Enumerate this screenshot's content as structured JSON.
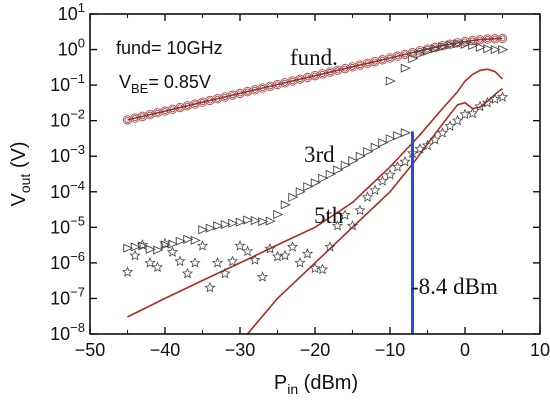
{
  "chart_data": {
    "type": "scatter",
    "xlabel": {
      "main": "P",
      "sub": "in",
      "rest": " (dBm)"
    },
    "ylabel": {
      "main": "V",
      "sub": "out",
      "rest": " (V)"
    },
    "xlim": [
      -50,
      10
    ],
    "ylim_log10": [
      -8,
      1
    ],
    "x_ticks": [
      -50,
      -40,
      -30,
      -20,
      -10,
      0,
      10
    ],
    "y_tick_exponents": [
      -8,
      -7,
      -6,
      -5,
      -4,
      -3,
      -2,
      -1,
      0,
      1
    ],
    "y_tick_base": "10",
    "scale_y": "log",
    "grid": false,
    "annotations": {
      "fund_label": "fund= 10GHz",
      "vbe_label": {
        "main": "V",
        "sub": "BE",
        "rest": "= 0.85V"
      },
      "fund_curve": "fund.",
      "third_curve": "3rd",
      "fifth_curve": "5th",
      "power_marker": "-8.4 dBm"
    },
    "marker_x": -7,
    "colors": {
      "model": "#b22a1e",
      "circle": "#d14a4a",
      "triangle": "#444444",
      "star": "#444444",
      "marker": "#2b4bd6"
    },
    "series": [
      {
        "marker": "circle",
        "role": "fund-measured",
        "x": [
          -45,
          -44,
          -43,
          -42,
          -41,
          -40,
          -39,
          -38,
          -37,
          -36,
          -35,
          -34,
          -33,
          -32,
          -31,
          -30,
          -29,
          -28,
          -27,
          -26,
          -25,
          -24,
          -23,
          -22,
          -21,
          -20,
          -19,
          -18,
          -17,
          -16,
          -15,
          -14,
          -13,
          -12,
          -11,
          -10,
          -9,
          -8,
          -7,
          -6,
          -5,
          -4,
          -3,
          -2,
          -1,
          0,
          1,
          2,
          3,
          4,
          5
        ],
        "y": [
          0.0105,
          0.0118,
          0.0132,
          0.0148,
          0.0166,
          0.0186,
          0.0209,
          0.0234,
          0.0262,
          0.0294,
          0.033,
          0.037,
          0.0415,
          0.0465,
          0.0522,
          0.0585,
          0.0656,
          0.0736,
          0.0825,
          0.0926,
          0.1039,
          0.1165,
          0.1307,
          0.1466,
          0.1645,
          0.1845,
          0.207,
          0.232,
          0.26,
          0.292,
          0.327,
          0.367,
          0.411,
          0.461,
          0.517,
          0.58,
          0.65,
          0.73,
          0.82,
          0.92,
          1.03,
          1.15,
          1.28,
          1.42,
          1.55,
          1.68,
          1.8,
          1.9,
          1.97,
          2.02,
          2.05
        ]
      },
      {
        "marker": "triangle",
        "role": "fund-sim",
        "x": [
          -10,
          -8,
          -7,
          -6,
          -5,
          -4,
          -3,
          -2,
          -1,
          0,
          1,
          2,
          3,
          4,
          5
        ],
        "y": [
          0.13,
          0.3,
          0.55,
          0.75,
          0.9,
          1.05,
          1.2,
          1.35,
          1.45,
          1.4,
          1.3,
          1.15,
          1.05,
          1.0,
          1.0
        ]
      },
      {
        "marker": "triangle",
        "role": "3rd-measured",
        "x": [
          -45,
          -44,
          -43,
          -42,
          -41,
          -40,
          -39,
          -38,
          -37,
          -36,
          -35,
          -34,
          -33,
          -32,
          -31,
          -30,
          -29,
          -28,
          -27,
          -26,
          -25,
          -24,
          -23,
          -22,
          -21,
          -20,
          -19,
          -18,
          -17,
          -16,
          -15,
          -14,
          -13,
          -12,
          -11,
          -10,
          -9,
          -8
        ],
        "y": [
          2.6e-06,
          2.8e-06,
          3e-06,
          2.4e-06,
          2.3e-06,
          3.2e-06,
          3.4e-06,
          4.1e-06,
          4.6e-06,
          4.3e-06,
          8.5e-06,
          9.5e-06,
          1.1e-05,
          1.2e-05,
          1.3e-05,
          1.4e-05,
          1.6e-05,
          1.55e-05,
          1.45e-05,
          1.5e-05,
          2.3e-05,
          4.3e-05,
          7e-05,
          0.0001,
          0.00014,
          0.00018,
          0.00024,
          0.00031,
          0.00041,
          0.00056,
          0.00075,
          0.001,
          0.00135,
          0.0018,
          0.0024,
          0.0031,
          0.0038,
          0.0046
        ]
      },
      {
        "marker": "star",
        "role": "5th-measured",
        "x": [
          -45,
          -44,
          -43,
          -42,
          -41,
          -40,
          -39,
          -38,
          -37,
          -36,
          -35,
          -34,
          -33,
          -32,
          -31,
          -30,
          -29,
          -28,
          -27,
          -26,
          -25,
          -24,
          -23,
          -22,
          -21,
          -20,
          -19,
          -18,
          -17,
          -16,
          -15,
          -14,
          -13,
          -12,
          -11,
          -10,
          -9,
          -8,
          -7,
          -6,
          -5,
          -4,
          -3,
          -2,
          -1,
          0,
          1,
          2,
          3,
          4,
          5
        ],
        "y": [
          5.5e-07,
          1.6e-06,
          3.2e-06,
          1e-06,
          7.5e-07,
          3.5e-06,
          2e-06,
          1.1e-06,
          5e-07,
          1e-06,
          3e-06,
          2e-07,
          1e-06,
          5e-07,
          1.1e-06,
          3e-06,
          2.1e-06,
          1.2e-06,
          4e-07,
          2.5e-06,
          1.5e-06,
          1.6e-06,
          2.8e-06,
          1e-06,
          1.8e-06,
          7e-07,
          6.5e-07,
          2.8e-06,
          1.1e-05,
          2.2e-05,
          1.1e-05,
          3e-05,
          7e-05,
          0.00011,
          0.0002,
          0.0003,
          0.0005,
          0.0007,
          0.0012,
          0.0016,
          0.002,
          0.0029,
          0.0045,
          0.007,
          0.01,
          0.015,
          0.016,
          0.025,
          0.032,
          0.04,
          0.046
        ]
      },
      {
        "marker": "line",
        "role": "fund-model",
        "x": [
          -45,
          -40,
          -35,
          -30,
          -25,
          -20,
          -15,
          -10,
          -6,
          -3,
          0,
          2,
          4,
          5
        ],
        "y": [
          0.0105,
          0.0186,
          0.033,
          0.0585,
          0.1039,
          0.1845,
          0.327,
          0.58,
          0.92,
          1.28,
          1.68,
          1.9,
          2.02,
          2.05
        ]
      },
      {
        "marker": "line",
        "role": "3rd-model",
        "x": [
          -45,
          -40,
          -35,
          -30,
          -25,
          -20,
          -15,
          -10,
          -6,
          -3,
          -1,
          0,
          1,
          2,
          3,
          4,
          5
        ],
        "y": [
          3e-08,
          1e-07,
          3.2e-07,
          1e-06,
          3.2e-06,
          1e-05,
          5e-05,
          0.0005,
          0.004,
          0.022,
          0.065,
          0.13,
          0.2,
          0.26,
          0.28,
          0.24,
          0.15
        ]
      },
      {
        "marker": "line",
        "role": "5th-model",
        "x": [
          -29,
          -25,
          -20,
          -15,
          -10,
          -7,
          -5,
          -3,
          -2,
          -1,
          0,
          1,
          2,
          3,
          4,
          5
        ],
        "y": [
          1e-08,
          1e-07,
          1e-06,
          1e-05,
          0.0001,
          0.0006,
          0.0022,
          0.008,
          0.015,
          0.028,
          0.032,
          0.022,
          0.024,
          0.035,
          0.055,
          0.08
        ]
      }
    ]
  }
}
